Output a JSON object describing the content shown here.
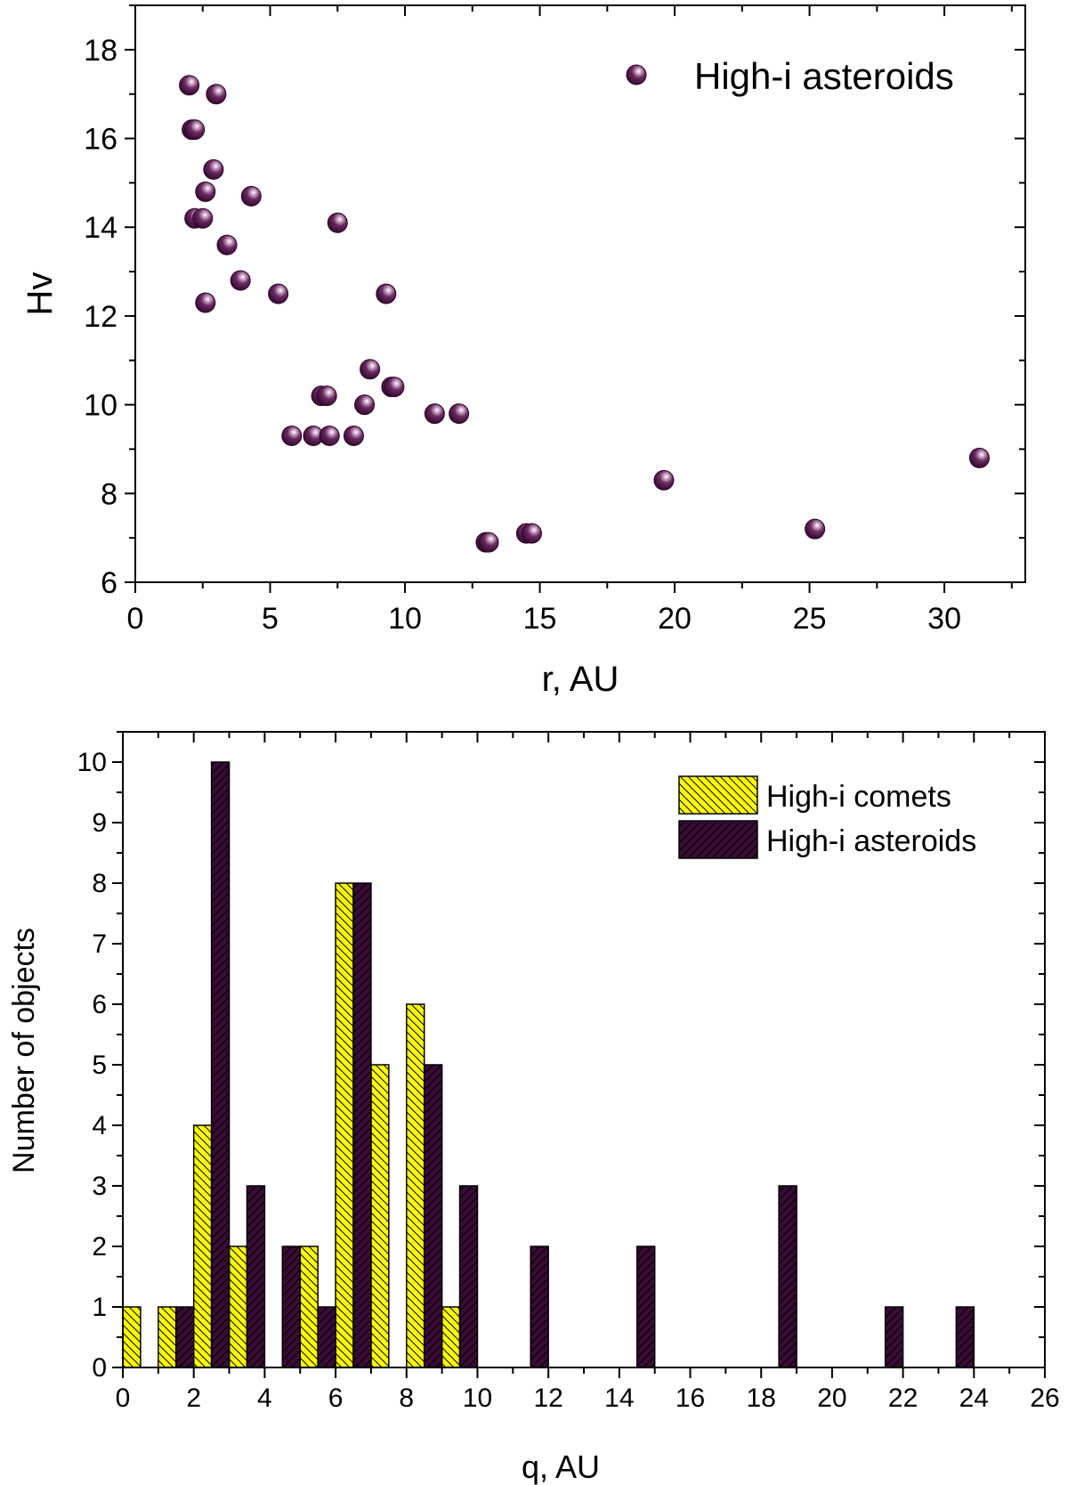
{
  "chart_data": [
    {
      "type": "scatter",
      "title": "",
      "xlabel": "r, AU",
      "ylabel": "Hv",
      "xlim": [
        0,
        33
      ],
      "ylim": [
        6,
        19
      ],
      "x_ticks": [
        "0",
        "5",
        "10",
        "15",
        "20",
        "25",
        "30"
      ],
      "y_ticks": [
        "6",
        "8",
        "10",
        "12",
        "14",
        "16",
        "18"
      ],
      "legend_position": "top-right",
      "series": [
        {
          "name": "High-i asteroids",
          "color": "#4a1242",
          "points": [
            [
              2.0,
              17.2
            ],
            [
              3.0,
              17.0
            ],
            [
              2.1,
              16.2
            ],
            [
              2.2,
              16.2
            ],
            [
              2.9,
              15.3
            ],
            [
              2.6,
              14.8
            ],
            [
              4.3,
              14.7
            ],
            [
              2.2,
              14.2
            ],
            [
              2.5,
              14.2
            ],
            [
              7.5,
              14.1
            ],
            [
              3.4,
              13.6
            ],
            [
              3.9,
              12.8
            ],
            [
              5.3,
              12.5
            ],
            [
              9.3,
              12.5
            ],
            [
              2.6,
              12.3
            ],
            [
              8.7,
              10.8
            ],
            [
              9.5,
              10.4
            ],
            [
              9.6,
              10.4
            ],
            [
              6.9,
              10.2
            ],
            [
              7.1,
              10.2
            ],
            [
              8.5,
              10.0
            ],
            [
              11.1,
              9.8
            ],
            [
              12.0,
              9.8
            ],
            [
              5.8,
              9.3
            ],
            [
              6.6,
              9.3
            ],
            [
              7.2,
              9.3
            ],
            [
              8.1,
              9.3
            ],
            [
              31.3,
              8.8
            ],
            [
              19.6,
              8.3
            ],
            [
              25.2,
              7.2
            ],
            [
              14.5,
              7.1
            ],
            [
              14.7,
              7.1
            ],
            [
              13.0,
              6.9
            ],
            [
              13.1,
              6.9
            ]
          ]
        }
      ]
    },
    {
      "type": "bar",
      "title": "",
      "xlabel": "q, AU",
      "ylabel": "Number of objects",
      "xlim": [
        0,
        26
      ],
      "ylim": [
        0,
        10.5
      ],
      "x_ticks": [
        "0",
        "2",
        "4",
        "6",
        "8",
        "10",
        "12",
        "14",
        "16",
        "18",
        "20",
        "22",
        "24",
        "26"
      ],
      "y_ticks": [
        "0",
        "1",
        "2",
        "3",
        "4",
        "5",
        "6",
        "7",
        "8",
        "9",
        "10"
      ],
      "bin_width": 0.5,
      "legend_position": "top-right",
      "series": [
        {
          "name": "High-i comets",
          "color": "#ffff00",
          "hatch": "backslash",
          "bins": [
            [
              0.0,
              1
            ],
            [
              1.0,
              1
            ],
            [
              2.0,
              4
            ],
            [
              3.0,
              2
            ],
            [
              5.0,
              2
            ],
            [
              6.0,
              8
            ],
            [
              7.0,
              5
            ],
            [
              8.0,
              6
            ],
            [
              9.0,
              1
            ]
          ]
        },
        {
          "name": "High-i asteroids",
          "color": "#3a0a36",
          "hatch": "slash",
          "bins": [
            [
              1.5,
              1
            ],
            [
              2.5,
              10
            ],
            [
              3.5,
              3
            ],
            [
              4.5,
              2
            ],
            [
              5.5,
              1
            ],
            [
              6.5,
              8
            ],
            [
              8.5,
              5
            ],
            [
              9.5,
              3
            ],
            [
              11.5,
              2
            ],
            [
              14.5,
              2
            ],
            [
              18.5,
              3
            ],
            [
              21.5,
              1
            ],
            [
              23.5,
              1
            ]
          ]
        }
      ]
    }
  ]
}
